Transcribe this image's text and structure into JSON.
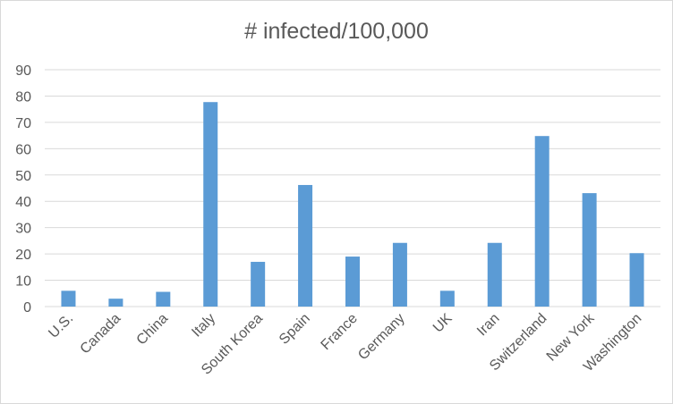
{
  "chart_data": {
    "type": "bar",
    "title": "# infected/100,000",
    "xlabel": "",
    "ylabel": "",
    "categories": [
      "U.S.",
      "Canada",
      "China",
      "Italy",
      "South Korea",
      "Spain",
      "France",
      "Germany",
      "UK",
      "Iran",
      "Switzerland",
      "New York",
      "Washington"
    ],
    "values": [
      6,
      3,
      5.6,
      77.7,
      17,
      46.2,
      19,
      24.2,
      6,
      24.2,
      64.8,
      43.1,
      20.3
    ],
    "ylim": [
      0,
      90
    ],
    "yticks": [
      0,
      10,
      20,
      30,
      40,
      50,
      60,
      70,
      80,
      90
    ],
    "grid": true,
    "legend": "none",
    "colors": {
      "bar": "#5b9bd5",
      "grid": "#d9d9d9",
      "text": "#595959",
      "border": "#d9d9d9"
    }
  }
}
